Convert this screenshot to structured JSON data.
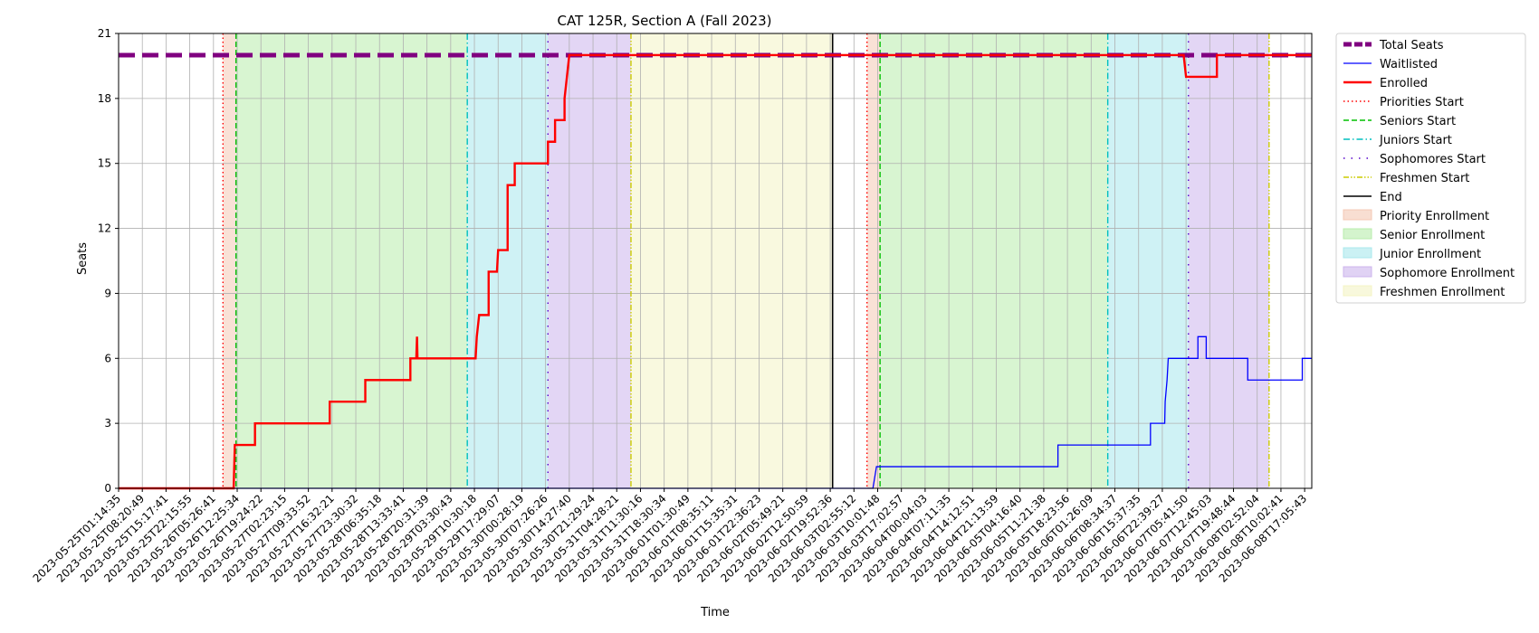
{
  "chart_data": {
    "type": "line",
    "title": "CAT 125R, Section A (Fall 2023)",
    "xlabel": "Time",
    "ylabel": "Seats",
    "ylim": [
      0,
      21
    ],
    "yticks": [
      0,
      3,
      6,
      9,
      12,
      15,
      18,
      21
    ],
    "grid": true,
    "legend_position": "outside-right",
    "x_tick_labels": [
      "2023-05-25T01:14:35",
      "2023-05-25T08:20:49",
      "2023-05-25T15:17:41",
      "2023-05-25T22:15:55",
      "2023-05-26T05:26:41",
      "2023-05-26T12:25:34",
      "2023-05-26T19:24:22",
      "2023-05-27T02:23:15",
      "2023-05-27T09:33:52",
      "2023-05-27T16:32:21",
      "2023-05-27T23:30:32",
      "2023-05-28T06:35:18",
      "2023-05-28T13:33:41",
      "2023-05-28T20:31:39",
      "2023-05-29T03:30:43",
      "2023-05-29T10:30:18",
      "2023-05-29T17:29:07",
      "2023-05-30T00:28:19",
      "2023-05-30T07:26:26",
      "2023-05-30T14:27:40",
      "2023-05-30T21:29:24",
      "2023-05-31T04:28:21",
      "2023-05-31T11:30:16",
      "2023-05-31T18:30:34",
      "2023-06-01T01:30:49",
      "2023-06-01T08:35:11",
      "2023-06-01T15:35:31",
      "2023-06-01T22:36:23",
      "2023-06-02T05:49:21",
      "2023-06-02T12:50:59",
      "2023-06-02T19:52:36",
      "2023-06-03T02:55:12",
      "2023-06-03T10:01:48",
      "2023-06-03T17:02:57",
      "2023-06-04T00:04:03",
      "2023-06-04T07:11:35",
      "2023-06-04T14:12:51",
      "2023-06-04T21:13:59",
      "2023-06-05T04:16:40",
      "2023-06-05T11:21:38",
      "2023-06-05T18:23:56",
      "2023-06-06T01:26:09",
      "2023-06-06T08:34:37",
      "2023-06-06T15:37:35",
      "2023-06-06T22:39:27",
      "2023-06-07T05:41:50",
      "2023-06-07T12:45:03",
      "2023-06-07T19:48:44",
      "2023-06-08T02:52:04",
      "2023-06-08T10:02:41",
      "2023-06-08T17:05:43"
    ],
    "x_tick_positions": [
      0,
      1,
      2,
      3,
      4,
      5,
      6,
      7,
      8,
      9,
      10,
      11,
      12,
      13,
      14,
      15,
      16,
      17,
      18,
      19,
      20,
      21,
      22,
      23,
      24,
      25,
      26,
      27,
      28,
      29,
      30,
      31,
      32,
      33,
      34,
      35,
      36,
      37,
      38,
      39,
      40,
      41,
      42,
      43,
      44,
      45,
      46,
      47,
      48,
      49,
      50
    ],
    "x_range": [
      0,
      50.3
    ],
    "total_seats": {
      "name": "Total Seats",
      "value": 20,
      "color": "#800080"
    },
    "series": [
      {
        "name": "Waitlisted",
        "color": "#0000ff",
        "x": [
          0,
          31.8,
          31.95,
          39.6,
          39.6,
          43.5,
          43.5,
          44.1,
          44.12,
          44.2,
          44.25,
          45.5,
          45.5,
          45.85,
          45.85,
          47.6,
          47.6,
          49.9,
          49.9,
          50.3
        ],
        "y": [
          0,
          0,
          1,
          1,
          2,
          2,
          3,
          3,
          4,
          5,
          6,
          6,
          7,
          7,
          6,
          6,
          5,
          5,
          6,
          6
        ]
      },
      {
        "name": "Enrolled",
        "color": "#ff0000",
        "x": [
          0,
          4.85,
          4.9,
          5.75,
          5.75,
          8.9,
          8.9,
          10.4,
          10.4,
          12.3,
          12.3,
          12.55,
          12.58,
          12.6,
          15.05,
          15.1,
          15.2,
          15.6,
          15.6,
          15.95,
          16.0,
          16.4,
          16.4,
          16.7,
          16.7,
          18.1,
          18.1,
          18.4,
          18.4,
          18.8,
          18.8,
          19.0,
          19.05,
          44.9,
          45.0,
          46.3,
          46.3,
          50.3
        ],
        "y": [
          0,
          0,
          2,
          2,
          3,
          3,
          4,
          4,
          5,
          5,
          6,
          6,
          7,
          6,
          6,
          7,
          8,
          8,
          10,
          10,
          11,
          11,
          14,
          14,
          15,
          15,
          16,
          16,
          17,
          17,
          18,
          20,
          20,
          20,
          19,
          19,
          20,
          20
        ]
      }
    ],
    "vertical_lines": [
      {
        "name": "Priorities Start",
        "x": [
          4.4,
          31.55
        ],
        "color": "#ff0000",
        "style": "dotted"
      },
      {
        "name": "Seniors Start",
        "x": [
          4.95,
          32.1
        ],
        "color": "#00c000",
        "style": "dashed"
      },
      {
        "name": "Juniors Start",
        "x": [
          14.7,
          41.7
        ],
        "color": "#00bfbf",
        "style": "dashdot"
      },
      {
        "name": "Sophomores Start",
        "x": [
          18.1,
          45.1
        ],
        "color": "#5500cc",
        "style": "loosedot"
      },
      {
        "name": "Freshmen Start",
        "x": [
          21.6,
          48.5
        ],
        "color": "#cccc00",
        "style": "dashdotdot"
      },
      {
        "name": "End",
        "x": [
          30.1
        ],
        "color": "#000000",
        "style": "solid"
      }
    ],
    "shaded_regions": [
      {
        "name": "Priority Enrollment",
        "color": "#f4c8b4",
        "ranges": [
          [
            4.4,
            4.95
          ],
          [
            31.55,
            32.1
          ]
        ]
      },
      {
        "name": "Senior Enrollment",
        "color": "#b8ecac",
        "ranges": [
          [
            4.95,
            14.7
          ],
          [
            32.1,
            41.7
          ]
        ]
      },
      {
        "name": "Junior Enrollment",
        "color": "#a8e8ec",
        "ranges": [
          [
            14.7,
            18.1
          ],
          [
            41.7,
            45.1
          ]
        ]
      },
      {
        "name": "Sophomore Enrollment",
        "color": "#ccb4ec",
        "ranges": [
          [
            18.1,
            21.6
          ],
          [
            45.1,
            48.5
          ]
        ]
      },
      {
        "name": "Freshmen Enrollment",
        "color": "#f4f4c4",
        "ranges": [
          [
            21.6,
            30.1
          ]
        ]
      }
    ]
  }
}
